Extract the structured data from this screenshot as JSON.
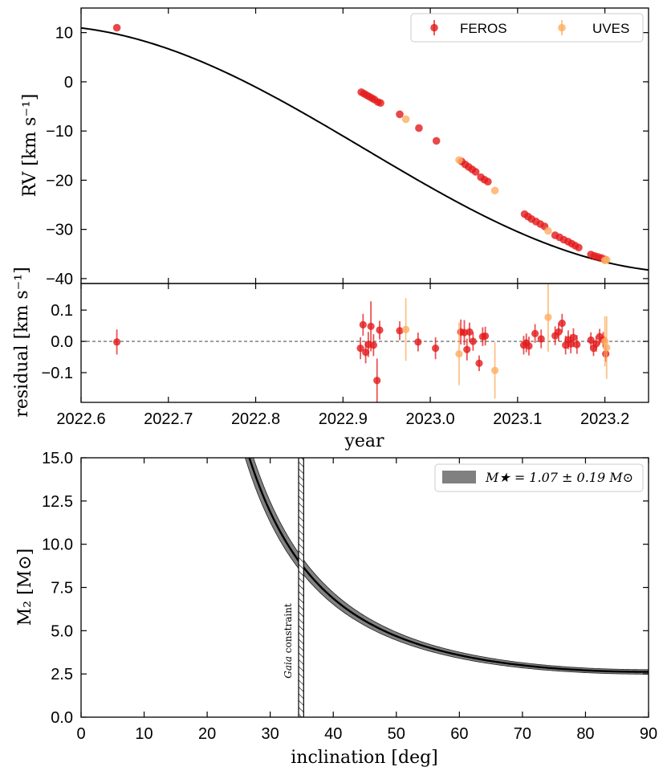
{
  "chart_data": [
    {
      "type": "scatter",
      "panel": "rv",
      "ylabel": "RV [km s⁻¹]",
      "xlim": [
        2022.6,
        2023.25
      ],
      "ylim": [
        -41,
        15
      ],
      "yticks": [
        10,
        0,
        -10,
        -20,
        -30,
        -40
      ],
      "ytick_labels": [
        "10",
        "0",
        "−10",
        "−20",
        "−30",
        "−40"
      ],
      "legend": {
        "placement": "top-right",
        "entries": [
          "FEROS",
          "UVES"
        ]
      },
      "series": [
        {
          "name": "FEROS",
          "color": "#e41a1c",
          "points": [
            [
              2022.641,
              11.0
            ],
            [
              2022.921,
              -2.1
            ],
            [
              2022.924,
              -2.4
            ],
            [
              2022.927,
              -2.7
            ],
            [
              2022.93,
              -3.0
            ],
            [
              2022.933,
              -3.3
            ],
            [
              2022.936,
              -3.6
            ],
            [
              2022.94,
              -4.1
            ],
            [
              2022.943,
              -4.3
            ],
            [
              2022.965,
              -6.6
            ],
            [
              2022.987,
              -9.4
            ],
            [
              2023.007,
              -12.0
            ],
            [
              2023.036,
              -16.2
            ],
            [
              2023.04,
              -16.8
            ],
            [
              2023.044,
              -17.3
            ],
            [
              2023.048,
              -17.8
            ],
            [
              2023.052,
              -18.3
            ],
            [
              2023.058,
              -19.4
            ],
            [
              2023.062,
              -19.9
            ],
            [
              2023.066,
              -20.3
            ],
            [
              2023.108,
              -26.9
            ],
            [
              2023.112,
              -27.4
            ],
            [
              2023.116,
              -27.9
            ],
            [
              2023.121,
              -28.4
            ],
            [
              2023.126,
              -28.9
            ],
            [
              2023.131,
              -29.4
            ],
            [
              2023.143,
              -31.2
            ],
            [
              2023.148,
              -31.6
            ],
            [
              2023.153,
              -32.1
            ],
            [
              2023.158,
              -32.5
            ],
            [
              2023.162,
              -32.9
            ],
            [
              2023.166,
              -33.3
            ],
            [
              2023.17,
              -33.7
            ],
            [
              2023.184,
              -35.1
            ],
            [
              2023.188,
              -35.4
            ],
            [
              2023.192,
              -35.6
            ],
            [
              2023.196,
              -35.8
            ],
            [
              2023.2,
              -36.1
            ]
          ]
        },
        {
          "name": "UVES",
          "color": "#fdae61",
          "points": [
            [
              2022.972,
              -7.6
            ],
            [
              2023.033,
              -15.9
            ],
            [
              2023.074,
              -22.1
            ],
            [
              2023.135,
              -30.3
            ],
            [
              2023.2,
              -36.3
            ],
            [
              2023.202,
              -36.2
            ]
          ]
        },
        {
          "name": "model",
          "color": "#000000",
          "curve": {
            "vmax": 11.5,
            "vmin": -38.8,
            "t_max": 2022.55,
            "t_min": 2023.3
          }
        }
      ]
    },
    {
      "type": "scatter",
      "panel": "residual",
      "xlabel": "year",
      "ylabel": "residual [km s⁻¹]",
      "xlim": [
        2022.6,
        2023.25
      ],
      "ylim": [
        -0.195,
        0.185
      ],
      "xticks": [
        2022.6,
        2022.7,
        2022.8,
        2022.9,
        2023.0,
        2023.1,
        2023.2
      ],
      "xtick_labels": [
        "2022.6",
        "2022.7",
        "2022.8",
        "2022.9",
        "2023.0",
        "2023.1",
        "2023.2"
      ],
      "yticks": [
        0.1,
        0.0,
        -0.1
      ],
      "ytick_labels": [
        "0.1",
        "0.0",
        "−0.1"
      ],
      "reference_line": 0,
      "series": [
        {
          "name": "FEROS",
          "color": "#e41a1c",
          "points": [
            [
              2022.641,
              -0.002,
              0.04
            ],
            [
              2022.92,
              -0.022,
              0.035
            ],
            [
              2022.923,
              0.053,
              0.035
            ],
            [
              2022.926,
              -0.035,
              0.035
            ],
            [
              2022.929,
              -0.01,
              0.04
            ],
            [
              2022.932,
              0.048,
              0.08
            ],
            [
              2022.935,
              -0.012,
              0.035
            ],
            [
              2022.939,
              -0.125,
              0.07
            ],
            [
              2022.942,
              0.036,
              0.03
            ],
            [
              2022.965,
              0.034,
              0.03
            ],
            [
              2022.986,
              -0.002,
              0.03
            ],
            [
              2023.006,
              -0.022,
              0.035
            ],
            [
              2023.035,
              0.03,
              0.04
            ],
            [
              2023.039,
              0.028,
              0.04
            ],
            [
              2023.042,
              -0.026,
              0.035
            ],
            [
              2023.045,
              0.03,
              0.03
            ],
            [
              2023.049,
              0.0,
              0.03
            ],
            [
              2023.056,
              -0.07,
              0.025
            ],
            [
              2023.06,
              0.015,
              0.03
            ],
            [
              2023.063,
              0.017,
              0.03
            ],
            [
              2023.107,
              -0.012,
              0.03
            ],
            [
              2023.11,
              -0.005,
              0.03
            ],
            [
              2023.113,
              -0.015,
              0.03
            ],
            [
              2023.12,
              0.025,
              0.03
            ],
            [
              2023.127,
              0.008,
              0.03
            ],
            [
              2023.143,
              0.018,
              0.03
            ],
            [
              2023.147,
              0.03,
              0.03
            ],
            [
              2023.151,
              0.058,
              0.03
            ],
            [
              2023.155,
              -0.012,
              0.03
            ],
            [
              2023.158,
              0.005,
              0.03
            ],
            [
              2023.161,
              -0.008,
              0.03
            ],
            [
              2023.164,
              0.012,
              0.03
            ],
            [
              2023.168,
              -0.01,
              0.03
            ],
            [
              2023.184,
              0.004,
              0.025
            ],
            [
              2023.187,
              -0.022,
              0.025
            ],
            [
              2023.19,
              -0.008,
              0.025
            ],
            [
              2023.194,
              0.015,
              0.025
            ],
            [
              2023.198,
              0.005,
              0.025
            ],
            [
              2023.201,
              -0.04,
              0.025
            ]
          ]
        },
        {
          "name": "UVES",
          "color": "#fdae61",
          "points": [
            [
              2022.972,
              0.038,
              0.1
            ],
            [
              2023.033,
              -0.04,
              0.1
            ],
            [
              2023.074,
              -0.093,
              0.09
            ],
            [
              2023.135,
              0.077,
              0.11
            ],
            [
              2023.2,
              0.0,
              0.08
            ],
            [
              2023.202,
              -0.02,
              0.1
            ]
          ]
        }
      ]
    },
    {
      "type": "line",
      "panel": "mass-function",
      "xlabel": "inclination [deg]",
      "ylabel": "M₂ [M⊙]",
      "xlim": [
        0,
        90
      ],
      "ylim": [
        0,
        15
      ],
      "xticks": [
        0,
        10,
        20,
        30,
        40,
        50,
        60,
        70,
        80,
        90
      ],
      "xtick_labels": [
        "0",
        "10",
        "20",
        "30",
        "40",
        "50",
        "60",
        "70",
        "80",
        "90"
      ],
      "yticks": [
        0.0,
        2.5,
        5.0,
        7.5,
        10.0,
        12.5,
        15.0
      ],
      "ytick_labels": [
        "0.0",
        "2.5",
        "5.0",
        "7.5",
        "10.0",
        "12.5",
        "15.0"
      ],
      "curve": {
        "m2_at_90deg": 2.62,
        "m2_at_35deg": 8.8,
        "band_halfwidth_at_90deg": 0.13
      },
      "legend": {
        "placement": "top-right",
        "label": "M★ = 1.07 ± 0.19 M⊙",
        "color": "#808080"
      },
      "constraint": {
        "label_italic": "Gaia",
        "label": "constraint",
        "range": [
          34.5,
          35.3
        ]
      }
    }
  ]
}
